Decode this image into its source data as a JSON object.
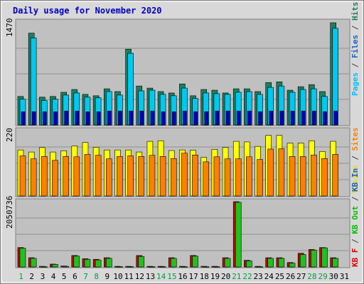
{
  "chart_data": [
    {
      "type": "bar",
      "title": "Daily usage for November 2020",
      "ylabel_parts": [
        {
          "text": "Pages",
          "color": "#00c0ff"
        },
        {
          "text": " / ",
          "color": "#404040"
        },
        {
          "text": "Files",
          "color": "#2060c0"
        },
        {
          "text": " / ",
          "color": "#404040"
        },
        {
          "text": "Hits",
          "color": "#208060"
        }
      ],
      "ymax_label": "1470",
      "ylim": [
        0,
        1470
      ],
      "categories": [
        "1",
        "2",
        "3",
        "4",
        "5",
        "6",
        "7",
        "8",
        "9",
        "10",
        "11",
        "12",
        "13",
        "14",
        "15",
        "16",
        "17",
        "18",
        "19",
        "20",
        "21",
        "22",
        "23",
        "24",
        "25",
        "26",
        "27",
        "28",
        "29",
        "30",
        "31"
      ],
      "series": [
        {
          "name": "Hits",
          "color": "#1a8060",
          "values": [
            410,
            1320,
            400,
            410,
            470,
            510,
            440,
            420,
            520,
            480,
            1090,
            560,
            530,
            480,
            460,
            590,
            420,
            510,
            500,
            460,
            520,
            520,
            480,
            610,
            620,
            500,
            550,
            580,
            480,
            1470,
            0
          ]
        },
        {
          "name": "Files",
          "color": "#00c8f0",
          "values": [
            370,
            1250,
            350,
            370,
            430,
            460,
            400,
            390,
            480,
            430,
            1030,
            490,
            500,
            440,
            420,
            530,
            380,
            460,
            450,
            440,
            470,
            480,
            440,
            540,
            560,
            470,
            510,
            520,
            410,
            1390,
            0
          ]
        },
        {
          "name": "Pages",
          "color": "#0000c0",
          "values": [
            190,
            190,
            190,
            190,
            200,
            200,
            190,
            190,
            200,
            200,
            200,
            200,
            200,
            190,
            190,
            200,
            190,
            190,
            200,
            200,
            200,
            200,
            190,
            200,
            200,
            200,
            200,
            200,
            190,
            200,
            0
          ]
        }
      ]
    },
    {
      "type": "bar",
      "ylabel_parts": [
        {
          "text": "Visits",
          "color": "#e0e000"
        },
        {
          "text": " / ",
          "color": "#404040"
        },
        {
          "text": "Sites",
          "color": "#ff8000"
        }
      ],
      "ymax_label": "220",
      "ylim": [
        0,
        220
      ],
      "categories": [
        "1",
        "2",
        "3",
        "4",
        "5",
        "6",
        "7",
        "8",
        "9",
        "10",
        "11",
        "12",
        "13",
        "14",
        "15",
        "16",
        "17",
        "18",
        "19",
        "20",
        "21",
        "22",
        "23",
        "24",
        "25",
        "26",
        "27",
        "28",
        "29",
        "30",
        "31"
      ],
      "series": [
        {
          "name": "Visits",
          "color": "#ffff00",
          "values": [
            155,
            148,
            163,
            148,
            152,
            168,
            180,
            164,
            155,
            155,
            155,
            148,
            184,
            186,
            153,
            155,
            154,
            130,
            157,
            163,
            184,
            182,
            167,
            204,
            204,
            178,
            178,
            186,
            150,
            184,
            0
          ]
        },
        {
          "name": "Sites",
          "color": "#ff8000",
          "values": [
            135,
            125,
            133,
            120,
            133,
            132,
            140,
            137,
            125,
            133,
            135,
            133,
            137,
            133,
            126,
            144,
            138,
            115,
            132,
            125,
            125,
            132,
            123,
            158,
            159,
            133,
            133,
            138,
            126,
            140,
            0
          ]
        }
      ]
    },
    {
      "type": "bar",
      "ylabel_parts": [
        {
          "text": "KB F",
          "color": "#e00000"
        },
        {
          "text": " / ",
          "color": "#404040"
        },
        {
          "text": "KB Out",
          "color": "#00c000"
        },
        {
          "text": " / ",
          "color": "#404040"
        },
        {
          "text": "KB In",
          "color": "#2060c0"
        }
      ],
      "ymax_label": "2050736",
      "ylim": [
        0,
        2050736
      ],
      "categories": [
        "1",
        "2",
        "3",
        "4",
        "5",
        "6",
        "7",
        "8",
        "9",
        "10",
        "11",
        "12",
        "13",
        "14",
        "15",
        "16",
        "17",
        "18",
        "19",
        "20",
        "21",
        "22",
        "23",
        "24",
        "25",
        "26",
        "27",
        "28",
        "29",
        "30",
        "31"
      ],
      "highlight_days": [
        1,
        7,
        8,
        14,
        15,
        21,
        22,
        28,
        29
      ],
      "series": [
        {
          "name": "KB F",
          "color": "#c00000",
          "values": [
            610000,
            290000,
            20000,
            90000,
            30000,
            360000,
            260000,
            240000,
            290000,
            20000,
            20000,
            360000,
            20000,
            20000,
            290000,
            20000,
            360000,
            20000,
            20000,
            290000,
            2050736,
            210000,
            20000,
            290000,
            290000,
            140000,
            430000,
            550000,
            610000,
            290000,
            0
          ]
        },
        {
          "name": "KB Out",
          "color": "#20c020",
          "values": [
            590000,
            270000,
            10000,
            80000,
            20000,
            340000,
            240000,
            220000,
            270000,
            10000,
            10000,
            330000,
            10000,
            10000,
            270000,
            10000,
            340000,
            10000,
            10000,
            270000,
            2030000,
            190000,
            10000,
            270000,
            270000,
            120000,
            390000,
            530000,
            600000,
            270000,
            0
          ]
        }
      ]
    }
  ]
}
